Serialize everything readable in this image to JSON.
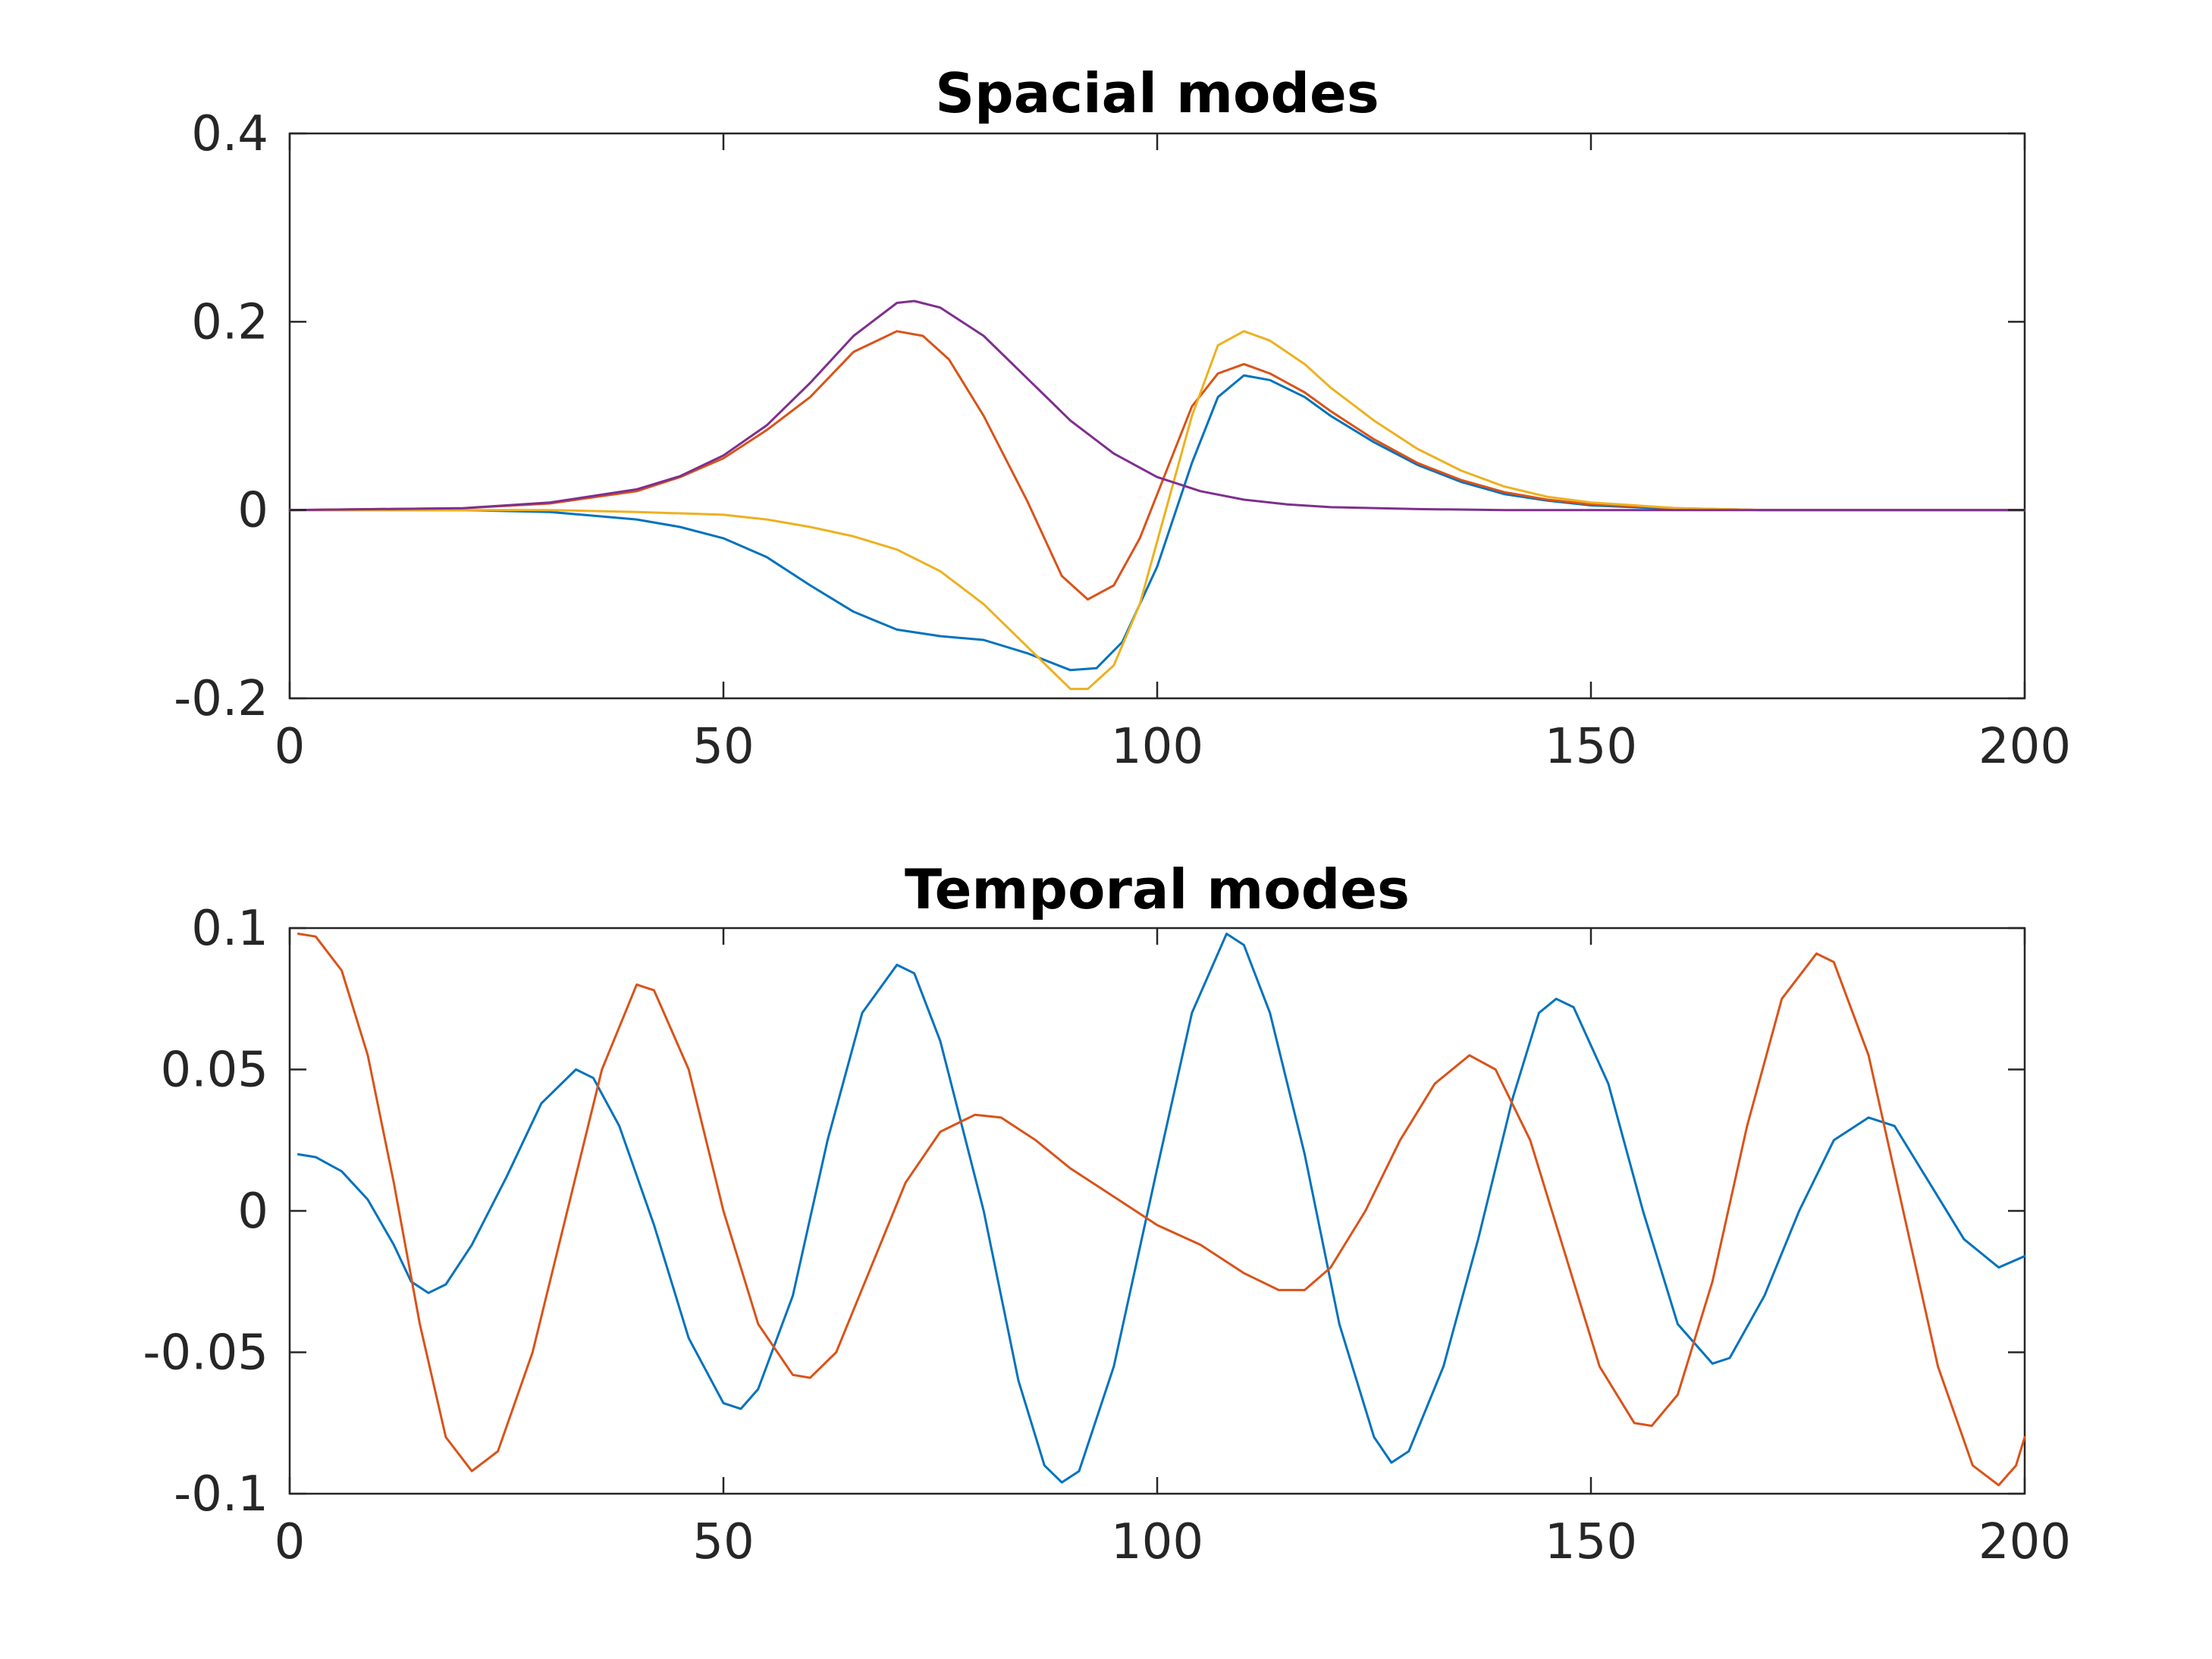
{
  "chart_data": [
    {
      "type": "line",
      "title": "Spacial modes",
      "xlabel": "",
      "ylabel": "",
      "xlim": [
        0,
        200
      ],
      "ylim": [
        -0.2,
        0.4
      ],
      "xticks": [
        "0",
        "50",
        "100",
        "150",
        "200"
      ],
      "yticks": [
        "-0.2",
        "0",
        "0.2",
        "0.4"
      ],
      "xtick_values": [
        0,
        50,
        100,
        150,
        200
      ],
      "ytick_values": [
        -0.2,
        0,
        0.2,
        0.4
      ],
      "grid": false,
      "legend": "none",
      "series": [
        {
          "color": "#0072BD",
          "points": [
            [
              0,
              0
            ],
            [
              20,
              0
            ],
            [
              30,
              -0.002
            ],
            [
              40,
              -0.01
            ],
            [
              45,
              -0.018
            ],
            [
              50,
              -0.03
            ],
            [
              55,
              -0.05
            ],
            [
              60,
              -0.08
            ],
            [
              65,
              -0.108
            ],
            [
              70,
              -0.127
            ],
            [
              75,
              -0.134
            ],
            [
              80,
              -0.138
            ],
            [
              85,
              -0.152
            ],
            [
              90,
              -0.17
            ],
            [
              93,
              -0.168
            ],
            [
              96,
              -0.14
            ],
            [
              100,
              -0.06
            ],
            [
              104,
              0.05
            ],
            [
              107,
              0.12
            ],
            [
              110,
              0.143
            ],
            [
              113,
              0.138
            ],
            [
              117,
              0.12
            ],
            [
              120,
              0.1
            ],
            [
              125,
              0.072
            ],
            [
              130,
              0.048
            ],
            [
              135,
              0.03
            ],
            [
              140,
              0.017
            ],
            [
              145,
              0.01
            ],
            [
              150,
              0.005
            ],
            [
              160,
              0.001
            ],
            [
              170,
              0
            ],
            [
              200,
              0
            ]
          ]
        },
        {
          "color": "#D95319",
          "points": [
            [
              0,
              0
            ],
            [
              20,
              0.002
            ],
            [
              30,
              0.007
            ],
            [
              40,
              0.02
            ],
            [
              45,
              0.035
            ],
            [
              50,
              0.055
            ],
            [
              55,
              0.085
            ],
            [
              60,
              0.12
            ],
            [
              65,
              0.168
            ],
            [
              70,
              0.19
            ],
            [
              73,
              0.185
            ],
            [
              76,
              0.16
            ],
            [
              80,
              0.1
            ],
            [
              85,
              0.01
            ],
            [
              89,
              -0.07
            ],
            [
              92,
              -0.095
            ],
            [
              95,
              -0.08
            ],
            [
              98,
              -0.03
            ],
            [
              101,
              0.04
            ],
            [
              104,
              0.11
            ],
            [
              107,
              0.145
            ],
            [
              110,
              0.155
            ],
            [
              113,
              0.145
            ],
            [
              117,
              0.125
            ],
            [
              120,
              0.105
            ],
            [
              125,
              0.075
            ],
            [
              130,
              0.05
            ],
            [
              135,
              0.032
            ],
            [
              140,
              0.019
            ],
            [
              145,
              0.011
            ],
            [
              150,
              0.006
            ],
            [
              160,
              0.002
            ],
            [
              170,
              0
            ],
            [
              200,
              0
            ]
          ]
        },
        {
          "color": "#EDB120",
          "points": [
            [
              0,
              0
            ],
            [
              20,
              0
            ],
            [
              30,
              0
            ],
            [
              40,
              -0.002
            ],
            [
              50,
              -0.005
            ],
            [
              55,
              -0.01
            ],
            [
              60,
              -0.018
            ],
            [
              65,
              -0.028
            ],
            [
              70,
              -0.042
            ],
            [
              75,
              -0.065
            ],
            [
              80,
              -0.1
            ],
            [
              85,
              -0.145
            ],
            [
              90,
              -0.19
            ],
            [
              92,
              -0.19
            ],
            [
              95,
              -0.165
            ],
            [
              98,
              -0.1
            ],
            [
              101,
              0
            ],
            [
              104,
              0.1
            ],
            [
              107,
              0.175
            ],
            [
              110,
              0.19
            ],
            [
              113,
              0.18
            ],
            [
              117,
              0.155
            ],
            [
              120,
              0.13
            ],
            [
              125,
              0.095
            ],
            [
              130,
              0.065
            ],
            [
              135,
              0.042
            ],
            [
              140,
              0.025
            ],
            [
              145,
              0.014
            ],
            [
              150,
              0.008
            ],
            [
              160,
              0.002
            ],
            [
              170,
              0
            ],
            [
              200,
              0
            ]
          ]
        },
        {
          "color": "#7E2F8E",
          "points": [
            [
              0,
              0
            ],
            [
              20,
              0.002
            ],
            [
              30,
              0.008
            ],
            [
              40,
              0.022
            ],
            [
              45,
              0.036
            ],
            [
              50,
              0.058
            ],
            [
              55,
              0.09
            ],
            [
              60,
              0.135
            ],
            [
              65,
              0.185
            ],
            [
              70,
              0.22
            ],
            [
              72,
              0.222
            ],
            [
              75,
              0.215
            ],
            [
              80,
              0.185
            ],
            [
              85,
              0.14
            ],
            [
              90,
              0.095
            ],
            [
              95,
              0.06
            ],
            [
              100,
              0.035
            ],
            [
              105,
              0.02
            ],
            [
              110,
              0.011
            ],
            [
              115,
              0.006
            ],
            [
              120,
              0.003
            ],
            [
              130,
              0.001
            ],
            [
              140,
              0
            ],
            [
              200,
              0
            ]
          ]
        }
      ]
    },
    {
      "type": "line",
      "title": "Temporal modes",
      "xlabel": "",
      "ylabel": "",
      "xlim": [
        0,
        200
      ],
      "ylim": [
        -0.1,
        0.1
      ],
      "xticks": [
        "0",
        "50",
        "100",
        "150",
        "200"
      ],
      "yticks": [
        "-0.1",
        "-0.05",
        "0",
        "0.05",
        "0.1"
      ],
      "xtick_values": [
        0,
        50,
        100,
        150,
        200
      ],
      "ytick_values": [
        -0.1,
        -0.05,
        0,
        0.05,
        0.1
      ],
      "grid": false,
      "legend": "none",
      "series": [
        {
          "color": "#0072BD",
          "points": [
            [
              1,
              0.02
            ],
            [
              3,
              0.019
            ],
            [
              6,
              0.014
            ],
            [
              9,
              0.004
            ],
            [
              12,
              -0.012
            ],
            [
              14,
              -0.025
            ],
            [
              16,
              -0.029
            ],
            [
              18,
              -0.026
            ],
            [
              21,
              -0.012
            ],
            [
              25,
              0.012
            ],
            [
              29,
              0.038
            ],
            [
              33,
              0.05
            ],
            [
              35,
              0.047
            ],
            [
              38,
              0.03
            ],
            [
              42,
              -0.005
            ],
            [
              46,
              -0.045
            ],
            [
              50,
              -0.068
            ],
            [
              52,
              -0.07
            ],
            [
              54,
              -0.063
            ],
            [
              58,
              -0.03
            ],
            [
              62,
              0.025
            ],
            [
              66,
              0.07
            ],
            [
              70,
              0.087
            ],
            [
              72,
              0.084
            ],
            [
              75,
              0.06
            ],
            [
              80,
              0.0
            ],
            [
              84,
              -0.06
            ],
            [
              87,
              -0.09
            ],
            [
              89,
              -0.096
            ],
            [
              91,
              -0.092
            ],
            [
              95,
              -0.055
            ],
            [
              100,
              0.015
            ],
            [
              104,
              0.07
            ],
            [
              108,
              0.098
            ],
            [
              110,
              0.094
            ],
            [
              113,
              0.07
            ],
            [
              117,
              0.02
            ],
            [
              121,
              -0.04
            ],
            [
              125,
              -0.08
            ],
            [
              127,
              -0.089
            ],
            [
              129,
              -0.085
            ],
            [
              133,
              -0.055
            ],
            [
              137,
              -0.01
            ],
            [
              141,
              0.04
            ],
            [
              144,
              0.07
            ],
            [
              146,
              0.075
            ],
            [
              148,
              0.072
            ],
            [
              152,
              0.045
            ],
            [
              156,
              0.0
            ],
            [
              160,
              -0.04
            ],
            [
              164,
              -0.054
            ],
            [
              166,
              -0.052
            ],
            [
              170,
              -0.03
            ],
            [
              174,
              0.0
            ],
            [
              178,
              0.025
            ],
            [
              182,
              0.033
            ],
            [
              185,
              0.03
            ],
            [
              189,
              0.01
            ],
            [
              193,
              -0.01
            ],
            [
              197,
              -0.02
            ],
            [
              200,
              -0.016
            ]
          ]
        },
        {
          "color": "#D95319",
          "points": [
            [
              1,
              0.098
            ],
            [
              3,
              0.097
            ],
            [
              6,
              0.085
            ],
            [
              9,
              0.055
            ],
            [
              12,
              0.01
            ],
            [
              15,
              -0.04
            ],
            [
              18,
              -0.08
            ],
            [
              21,
              -0.092
            ],
            [
              24,
              -0.085
            ],
            [
              28,
              -0.05
            ],
            [
              32,
              0.0
            ],
            [
              36,
              0.05
            ],
            [
              40,
              0.08
            ],
            [
              42,
              0.078
            ],
            [
              46,
              0.05
            ],
            [
              50,
              0.0
            ],
            [
              54,
              -0.04
            ],
            [
              58,
              -0.058
            ],
            [
              60,
              -0.059
            ],
            [
              63,
              -0.05
            ],
            [
              67,
              -0.02
            ],
            [
              71,
              0.01
            ],
            [
              75,
              0.028
            ],
            [
              79,
              0.034
            ],
            [
              82,
              0.033
            ],
            [
              86,
              0.025
            ],
            [
              90,
              0.015
            ],
            [
              95,
              0.005
            ],
            [
              100,
              -0.005
            ],
            [
              105,
              -0.012
            ],
            [
              110,
              -0.022
            ],
            [
              114,
              -0.028
            ],
            [
              117,
              -0.028
            ],
            [
              120,
              -0.02
            ],
            [
              124,
              0.0
            ],
            [
              128,
              0.025
            ],
            [
              132,
              0.045
            ],
            [
              136,
              0.055
            ],
            [
              139,
              0.05
            ],
            [
              143,
              0.025
            ],
            [
              147,
              -0.015
            ],
            [
              151,
              -0.055
            ],
            [
              155,
              -0.075
            ],
            [
              157,
              -0.076
            ],
            [
              160,
              -0.065
            ],
            [
              164,
              -0.025
            ],
            [
              168,
              0.03
            ],
            [
              172,
              0.075
            ],
            [
              176,
              0.091
            ],
            [
              178,
              0.088
            ],
            [
              182,
              0.055
            ],
            [
              186,
              0.0
            ],
            [
              190,
              -0.055
            ],
            [
              194,
              -0.09
            ],
            [
              197,
              -0.097
            ],
            [
              199,
              -0.09
            ],
            [
              200,
              -0.08
            ]
          ]
        }
      ]
    }
  ]
}
